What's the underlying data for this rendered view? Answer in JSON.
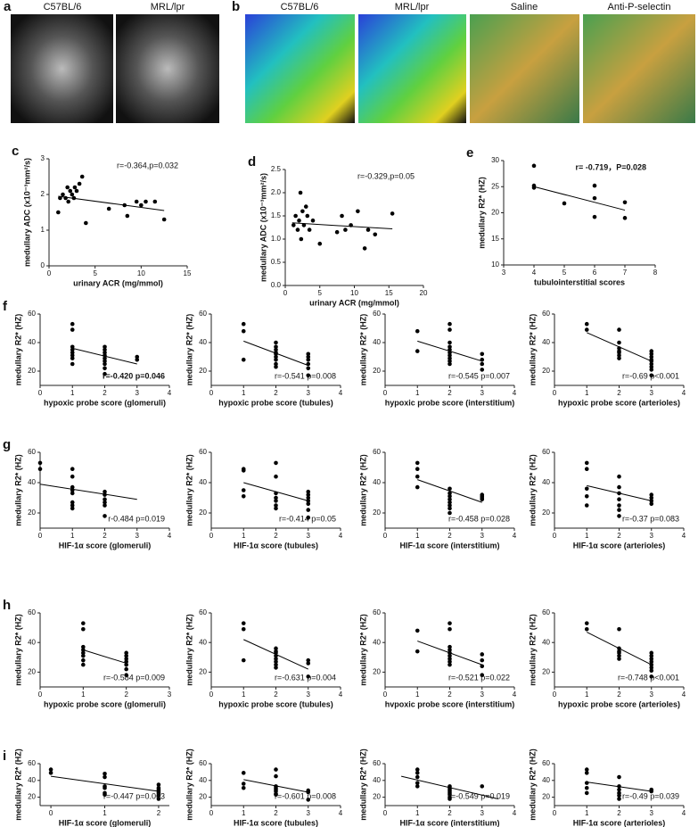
{
  "image_panels": [
    {
      "letter": "a",
      "labels": [
        "C57BL/6",
        "MRL/lpr"
      ]
    },
    {
      "letter": "b",
      "labels": [
        "C57BL/6",
        "MRL/lpr",
        "Saline",
        "Anti-P-selectin"
      ]
    }
  ],
  "chart_data": [
    {
      "type": "scatter",
      "panel": "c",
      "xlabel": "urinary ACR (mg/mmol)",
      "ylabel": "medullary ADC (x10⁻³mm²/s)",
      "annotation": "r=-0.364,p=0.032",
      "xlim": [
        0,
        15
      ],
      "xticks": [
        0,
        5,
        10,
        15
      ],
      "ylim": [
        0,
        3
      ],
      "yticks": [
        0,
        1,
        2,
        3
      ],
      "x": [
        1,
        1.2,
        1.5,
        1.8,
        2,
        2.1,
        2.3,
        2.5,
        2.7,
        2.8,
        3,
        3.3,
        3.6,
        4,
        6.5,
        8.2,
        8.5,
        9.5,
        10,
        10.5,
        11.5,
        12.5
      ],
      "values": [
        1.5,
        1.9,
        2.0,
        1.9,
        2.2,
        1.8,
        2.1,
        2.0,
        1.9,
        2.2,
        2.1,
        2.3,
        2.5,
        1.2,
        1.6,
        1.7,
        1.4,
        1.8,
        1.7,
        1.8,
        1.8,
        1.3
      ],
      "trend": {
        "x": [
          1,
          12.5
        ],
        "y": [
          1.95,
          1.55
        ]
      }
    },
    {
      "type": "scatter",
      "panel": "d",
      "xlabel": "urinary ACR (mg/mmol)",
      "ylabel": "medullary ADC (x10⁻³mm²/s)",
      "annotation": "r=-0.329,p=0.05",
      "xlim": [
        0,
        20
      ],
      "xticks": [
        0,
        5,
        10,
        15,
        20
      ],
      "ylim": [
        0,
        2.5
      ],
      "yticks": [
        {
          "value": 0,
          "label": "0.0"
        },
        0.5,
        {
          "value": 1,
          "label": "1.0"
        },
        1.5,
        {
          "value": 2,
          "label": "2.0"
        },
        2.5
      ],
      "x": [
        1.2,
        1.5,
        1.8,
        2,
        2.2,
        2.3,
        2.5,
        2.7,
        3,
        3.2,
        3.5,
        4,
        5,
        7.5,
        8.2,
        8.7,
        9.5,
        10.5,
        11.5,
        12,
        13,
        15.5
      ],
      "values": [
        1.3,
        1.5,
        1.2,
        1.4,
        2.0,
        1.0,
        1.6,
        1.3,
        1.7,
        1.5,
        1.2,
        1.4,
        0.9,
        1.15,
        1.5,
        1.2,
        1.3,
        1.6,
        0.8,
        1.2,
        1.1,
        1.55
      ],
      "trend": {
        "x": [
          1,
          15.5
        ],
        "y": [
          1.35,
          1.22
        ]
      }
    },
    {
      "type": "scatter",
      "panel": "e",
      "xlabel": "tubulointerstitial scores",
      "ylabel": "medullary R2* (HZ)",
      "annotation": "r= -0.719，P=0.028",
      "xlim": [
        3,
        8
      ],
      "xticks": [
        3,
        4,
        5,
        6,
        7,
        8
      ],
      "ylim": [
        10,
        30
      ],
      "yticks": [
        10,
        15,
        20,
        25,
        30
      ],
      "x": [
        4,
        4,
        4,
        5,
        6,
        6,
        6,
        7,
        7
      ],
      "values": [
        29,
        25.2,
        24.8,
        21.8,
        25.2,
        22.8,
        19.2,
        22,
        19
      ],
      "trend": {
        "x": [
          4,
          7
        ],
        "y": [
          25,
          20.5
        ]
      }
    },
    {
      "type": "scatter",
      "panel": "f",
      "xlabel": "hypoxic probe score (glomeruli)",
      "ylabel": "medullary R2* (HZ)",
      "annotation": "r=-0.420 p=0.046",
      "xlim": [
        0,
        4
      ],
      "xticks": [
        0,
        1,
        2,
        3,
        4
      ],
      "ylim": [
        10,
        60
      ],
      "yticks": [
        20,
        40,
        60
      ],
      "x": [
        1,
        1,
        1,
        1,
        1,
        1,
        1,
        1,
        2,
        2,
        2,
        2,
        2,
        2,
        2,
        2,
        2,
        3,
        3
      ],
      "values": [
        53,
        49,
        37,
        35,
        33,
        31,
        29,
        25,
        37,
        35,
        33,
        31,
        29,
        27,
        25,
        22,
        18,
        30,
        28
      ],
      "trend": {
        "x": [
          1,
          3
        ],
        "y": [
          36,
          25
        ]
      }
    },
    {
      "type": "scatter",
      "xlabel": "hypoxic probe score (tubules)",
      "ylabel": "medullary R2* (HZ)",
      "annotation": "r=-0.541 p=0.008",
      "xlim": [
        0,
        4
      ],
      "xticks": [
        0,
        1,
        2,
        3,
        4
      ],
      "ylim": [
        10,
        60
      ],
      "yticks": [
        20,
        40,
        60
      ],
      "x": [
        1,
        1,
        1,
        2,
        2,
        2,
        2,
        2,
        2,
        2,
        2,
        2,
        3,
        3,
        3,
        3,
        3,
        3
      ],
      "values": [
        53,
        48,
        28,
        40,
        37,
        35,
        33,
        32,
        30,
        28,
        25,
        23,
        32,
        30,
        28,
        25,
        22,
        17
      ],
      "trend": {
        "x": [
          1,
          3
        ],
        "y": [
          41,
          24
        ]
      }
    },
    {
      "type": "scatter",
      "xlabel": "hypoxic probe score (interstitium)",
      "ylabel": "medullary R2* (HZ)",
      "annotation": "r=-0.545 p=0.007",
      "xlim": [
        0,
        4
      ],
      "xticks": [
        0,
        1,
        2,
        3,
        4
      ],
      "ylim": [
        10,
        60
      ],
      "yticks": [
        20,
        40,
        60
      ],
      "x": [
        1,
        1,
        2,
        2,
        2,
        2,
        2,
        2,
        2,
        2,
        2,
        2,
        3,
        3,
        3,
        3
      ],
      "values": [
        48,
        34,
        53,
        49,
        40,
        37,
        35,
        33,
        31,
        29,
        27,
        25,
        32,
        28,
        25,
        21
      ],
      "trend": {
        "x": [
          1,
          3
        ],
        "y": [
          41,
          27
        ]
      }
    },
    {
      "type": "scatter",
      "xlabel": "hypoxic probe score (arterioles)",
      "ylabel": "medullary R2* (HZ)",
      "annotation": "r=-0.69 p<0.001",
      "xlim": [
        0,
        4
      ],
      "xticks": [
        0,
        1,
        2,
        3,
        4
      ],
      "ylim": [
        10,
        60
      ],
      "yticks": [
        20,
        40,
        60
      ],
      "x": [
        1,
        1,
        2,
        2,
        2,
        2,
        2,
        2,
        2,
        3,
        3,
        3,
        3,
        3,
        3,
        3,
        3,
        3
      ],
      "values": [
        53,
        49,
        49,
        40,
        36,
        34,
        33,
        31,
        29,
        34,
        32,
        30,
        28,
        27,
        25,
        23,
        21,
        17
      ],
      "trend": {
        "x": [
          1,
          3
        ],
        "y": [
          47,
          27
        ]
      }
    },
    {
      "type": "scatter",
      "panel": "g",
      "xlabel": "HIF-1α score (glomeruli)",
      "ylabel": "medullary R2* (HZ)",
      "annotation": "r-0.484 p=0.019",
      "xlim": [
        0,
        4
      ],
      "xticks": [
        0,
        1,
        2,
        3,
        4
      ],
      "ylim": [
        10,
        60
      ],
      "yticks": [
        20,
        40,
        60
      ],
      "x": [
        0,
        0,
        1,
        1,
        1,
        1,
        1,
        1,
        1,
        1,
        2,
        2,
        2,
        2,
        2,
        2
      ],
      "values": [
        53,
        49,
        49,
        44,
        37,
        35,
        33,
        27,
        25,
        23,
        34,
        32,
        29,
        27,
        25,
        18
      ],
      "trend": {
        "x": [
          0,
          3
        ],
        "y": [
          39,
          29
        ]
      }
    },
    {
      "type": "scatter",
      "xlabel": "HIF-1α score (tubules)",
      "ylabel": "medullary R2* (HZ)",
      "annotation": "r=-0.414 p=0.05",
      "xlim": [
        0,
        4
      ],
      "xticks": [
        0,
        1,
        2,
        3,
        4
      ],
      "ylim": [
        10,
        60
      ],
      "yticks": [
        20,
        40,
        60
      ],
      "x": [
        1,
        1,
        1,
        1,
        2,
        2,
        2,
        2,
        2,
        2,
        2,
        3,
        3,
        3,
        3,
        3,
        3,
        3
      ],
      "values": [
        49,
        48,
        35,
        31,
        53,
        44,
        33,
        30,
        28,
        25,
        23,
        34,
        32,
        30,
        28,
        26,
        22,
        17
      ],
      "trend": {
        "x": [
          1,
          3
        ],
        "y": [
          40,
          28
        ]
      }
    },
    {
      "type": "scatter",
      "xlabel": "HIF-1α score (interstitium)",
      "ylabel": "medullary R2* (HZ)",
      "annotation": "r=-0.458 p=0.028",
      "xlim": [
        0,
        4
      ],
      "xticks": [
        0,
        1,
        2,
        3,
        4
      ],
      "ylim": [
        10,
        60
      ],
      "yticks": [
        20,
        40,
        60
      ],
      "x": [
        1,
        1,
        1,
        1,
        2,
        2,
        2,
        2,
        2,
        2,
        2,
        2,
        3,
        3,
        3,
        3
      ],
      "values": [
        53,
        49,
        44,
        37,
        36,
        33,
        31,
        29,
        27,
        25,
        23,
        20,
        32,
        31,
        30,
        29
      ],
      "trend": {
        "x": [
          1,
          3
        ],
        "y": [
          42,
          27
        ]
      }
    },
    {
      "type": "scatter",
      "xlabel": "HIF-1α score (arterioles)",
      "ylabel": "medullary R2* (HZ)",
      "annotation": "r=-0.37 p=0.083",
      "xlim": [
        0,
        4
      ],
      "xticks": [
        0,
        1,
        2,
        3,
        4
      ],
      "ylim": [
        10,
        60
      ],
      "yticks": [
        20,
        40,
        60
      ],
      "x": [
        1,
        1,
        1,
        1,
        1,
        2,
        2,
        2,
        2,
        2,
        2,
        2,
        3,
        3,
        3,
        3
      ],
      "values": [
        53,
        49,
        36,
        31,
        25,
        44,
        37,
        33,
        29,
        25,
        22,
        18,
        32,
        30,
        28,
        26
      ],
      "trend": {
        "x": [
          1,
          3
        ],
        "y": [
          38,
          28
        ]
      }
    },
    {
      "type": "scatter",
      "panel": "h",
      "xlabel": "hypoxic probe score (glomeruli)",
      "ylabel": "medullary R2* (HZ)",
      "annotation": "r=-0.584 p=0.009",
      "xlim": [
        0,
        3
      ],
      "xticks": [
        0,
        1,
        2,
        3
      ],
      "ylim": [
        10,
        60
      ],
      "yticks": [
        20,
        40,
        60
      ],
      "x": [
        1,
        1,
        1,
        1,
        1,
        1,
        1,
        1,
        2,
        2,
        2,
        2,
        2,
        2,
        2
      ],
      "values": [
        53,
        49,
        37,
        35,
        33,
        31,
        28,
        25,
        33,
        31,
        29,
        27,
        25,
        22,
        18
      ],
      "trend": {
        "x": [
          1,
          2
        ],
        "y": [
          35,
          26
        ]
      }
    },
    {
      "type": "scatter",
      "xlabel": "hypoxic probe score (tubules)",
      "ylabel": "medullary R2* (HZ)",
      "annotation": "r=-0.631 p=0.004",
      "xlim": [
        0,
        4
      ],
      "xticks": [
        0,
        1,
        2,
        3,
        4
      ],
      "ylim": [
        10,
        60
      ],
      "yticks": [
        20,
        40,
        60
      ],
      "x": [
        1,
        1,
        1,
        2,
        2,
        2,
        2,
        2,
        2,
        2,
        2,
        3,
        3,
        3
      ],
      "values": [
        53,
        49,
        28,
        36,
        34,
        33,
        31,
        29,
        27,
        25,
        23,
        28,
        26,
        17
      ],
      "trend": {
        "x": [
          1,
          3
        ],
        "y": [
          42,
          22
        ]
      }
    },
    {
      "type": "scatter",
      "xlabel": "hvpoxic probe score (interstitium)",
      "ylabel": "medullary R2* (HZ)",
      "annotation": "r=-0.521 p=0.022",
      "xlim": [
        0,
        4
      ],
      "xticks": [
        0,
        1,
        2,
        3,
        4
      ],
      "ylim": [
        10,
        60
      ],
      "yticks": [
        20,
        40,
        60
      ],
      "x": [
        1,
        1,
        2,
        2,
        2,
        2,
        2,
        2,
        2,
        2,
        2,
        3,
        3,
        3,
        3
      ],
      "values": [
        48,
        34,
        53,
        49,
        37,
        35,
        33,
        31,
        29,
        27,
        25,
        32,
        28,
        24,
        18
      ],
      "trend": {
        "x": [
          1,
          3
        ],
        "y": [
          41,
          25
        ]
      }
    },
    {
      "type": "scatter",
      "xlabel": "hypoxic probe score (arterioles)",
      "ylabel": "medullary R2* (HZ)",
      "annotation": "r=-0.748 p<0.001",
      "xlim": [
        0,
        4
      ],
      "xticks": [
        0,
        1,
        2,
        3,
        4
      ],
      "ylim": [
        10,
        60
      ],
      "yticks": [
        20,
        40,
        60
      ],
      "x": [
        1,
        1,
        2,
        2,
        2,
        2,
        2,
        2,
        3,
        3,
        3,
        3,
        3,
        3,
        3,
        3
      ],
      "values": [
        53,
        49,
        49,
        36,
        34,
        33,
        31,
        29,
        33,
        31,
        29,
        27,
        25,
        23,
        21,
        17
      ],
      "trend": {
        "x": [
          1,
          3
        ],
        "y": [
          47,
          25
        ]
      }
    },
    {
      "type": "scatter",
      "panel": "i",
      "xlabel": "HIF-1α score (glomeruli)",
      "ylabel": "medullary R2* (HZ)",
      "annotation": "r=-0.447 p=0.063",
      "xlim": [
        -0.2,
        2.2
      ],
      "xticks": [
        0,
        1,
        2
      ],
      "ylim": [
        10,
        60
      ],
      "yticks": [
        20,
        40,
        60
      ],
      "x": [
        0,
        0,
        1,
        1,
        1,
        1,
        1,
        1,
        2,
        2,
        2,
        2,
        2,
        2,
        2
      ],
      "values": [
        53,
        49,
        48,
        44,
        33,
        31,
        25,
        23,
        35,
        31,
        29,
        27,
        25,
        22,
        18
      ],
      "trend": {
        "x": [
          0,
          2
        ],
        "y": [
          45,
          27
        ]
      }
    },
    {
      "type": "scatter",
      "xlabel": "HIF-1α score (tubules)",
      "ylabel": "medullary R2* (HZ)",
      "annotation": "r=-0.601 p=0.008",
      "xlim": [
        0,
        4
      ],
      "xticks": [
        0,
        1,
        2,
        3,
        4
      ],
      "ylim": [
        10,
        60
      ],
      "yticks": [
        20,
        40,
        60
      ],
      "x": [
        1,
        1,
        1,
        2,
        2,
        2,
        2,
        2,
        2,
        2,
        2,
        3,
        3,
        3
      ],
      "values": [
        49,
        36,
        31,
        53,
        45,
        33,
        31,
        29,
        27,
        24,
        23,
        28,
        26,
        17
      ],
      "trend": {
        "x": [
          1,
          3
        ],
        "y": [
          41,
          26
        ]
      }
    },
    {
      "type": "scatter",
      "xlabel": "HIF-1α score (interstitium)",
      "ylabel": "medullary R2* (HZ)",
      "annotation": "r=-0.549 p=0.019",
      "xlim": [
        0,
        4
      ],
      "xticks": [
        0,
        1,
        2,
        3,
        4
      ],
      "ylim": [
        10,
        60
      ],
      "yticks": [
        20,
        40,
        60
      ],
      "x": [
        1,
        1,
        1,
        1,
        1,
        2,
        2,
        2,
        2,
        2,
        2,
        2,
        2,
        3
      ],
      "values": [
        53,
        49,
        44,
        37,
        33,
        33,
        31,
        29,
        27,
        25,
        23,
        20,
        18,
        33
      ],
      "trend": {
        "x": [
          0.5,
          3.5
        ],
        "y": [
          45,
          18
        ]
      }
    },
    {
      "type": "scatter",
      "xlabel": "HIF-1α score (arterioles)",
      "ylabel": "medullary R2* (HZ)",
      "annotation": "r=-0.49 p=0.039",
      "xlim": [
        0,
        4
      ],
      "xticks": [
        0,
        1,
        2,
        3,
        4
      ],
      "ylim": [
        10,
        60
      ],
      "yticks": [
        20,
        40,
        60
      ],
      "x": [
        1,
        1,
        1,
        1,
        1,
        2,
        2,
        2,
        2,
        2,
        2,
        3,
        3
      ],
      "values": [
        53,
        49,
        37,
        31,
        25,
        44,
        33,
        29,
        25,
        22,
        18,
        29,
        27
      ],
      "trend": {
        "x": [
          1,
          3
        ],
        "y": [
          38,
          27
        ]
      }
    }
  ]
}
